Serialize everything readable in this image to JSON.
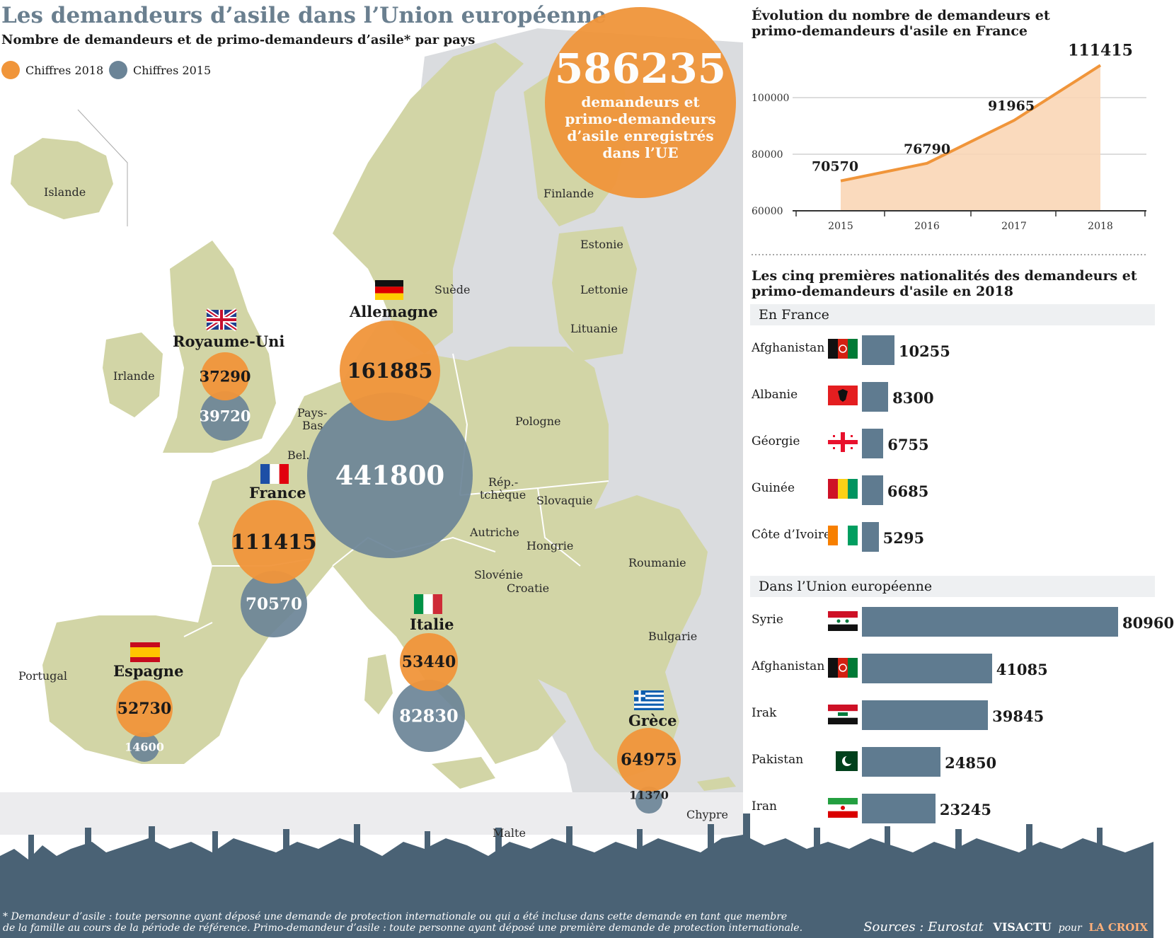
{
  "header": {
    "title": "Les demandeurs d’asile dans l’Union européenne",
    "subtitle": "Nombre de demandeurs et de primo-demandeurs d’asile* par pays",
    "legend_2018": "Chiffres 2018",
    "legend_2015": "Chiffres 2015"
  },
  "colors": {
    "orange": "#f0953a",
    "blue": "#6b8497",
    "land": "#d2d5a6",
    "other_land": "#dadcdf",
    "sea": "#ffffff",
    "bar": "#5f7b90"
  },
  "total": {
    "value": "586235",
    "text_lines": [
      "demandeurs et",
      "primo-demandeurs",
      "d’asile enregistrés",
      "dans l’UE"
    ]
  },
  "map_labels": {
    "islande": "Islande",
    "finlande": "Finlande",
    "suede": "Suède",
    "estonie": "Estonie",
    "lettonie": "Lettonie",
    "lituanie": "Lituanie",
    "irlande": "Irlande",
    "pays_bas_1": "Pays-",
    "pays_bas_2": "Bas",
    "belgique": "Bel.",
    "pologne": "Pologne",
    "rep_tcheque_1": "Rép.-",
    "rep_tcheque_2": "tchèque",
    "slovaquie": "Slovaquie",
    "autriche": "Autriche",
    "hongrie": "Hongrie",
    "roumanie": "Roumanie",
    "slovenie": "Slovénie",
    "croatie": "Croatie",
    "bulgarie": "Bulgarie",
    "portugal": "Portugal",
    "malte": "Malte",
    "chypre": "Chypre"
  },
  "countries": [
    {
      "name": "Royaume-Uni",
      "v2018": "37290",
      "v2015": "39720"
    },
    {
      "name": "Allemagne",
      "v2018": "161885",
      "v2015": "441800"
    },
    {
      "name": "France",
      "v2018": "111415",
      "v2015": "70570"
    },
    {
      "name": "Espagne",
      "v2018": "52730",
      "v2015": "14600"
    },
    {
      "name": "Italie",
      "v2018": "53440",
      "v2015": "82830"
    },
    {
      "name": "Grèce",
      "v2018": "64975",
      "v2015": "11370"
    }
  ],
  "france_evolution": {
    "title_lines": [
      "Évolution du nombre de demandeurs et",
      "primo-demandeurs d'asile en France"
    ],
    "value_labels": [
      "70570",
      "76790",
      "91965",
      "111415"
    ]
  },
  "top_nationalities": {
    "title_lines": [
      "Les cinq premières nationalités des demandeurs et",
      "primo-demandeurs d'asile en 2018"
    ],
    "france_label": "En France",
    "eu_label": "Dans l’Union européenne",
    "france_value_labels": [
      "10255",
      "8300",
      "6755",
      "6685",
      "5295"
    ],
    "eu_value_labels": [
      "80960",
      "41085",
      "39845",
      "24850",
      "23245"
    ]
  },
  "chart_data": [
    {
      "type": "line",
      "x": [
        2015,
        2016,
        2017,
        2018
      ],
      "y": [
        70570,
        76790,
        91965,
        111415
      ],
      "ylim": [
        60000,
        115000
      ],
      "yticks": [
        60000,
        80000,
        100000
      ],
      "ytick_labels": [
        "60000",
        "80000",
        "100000"
      ],
      "xtick_labels": [
        "2015",
        "2016",
        "2017",
        "2018"
      ]
    },
    {
      "type": "bar",
      "categories": [
        "Afghanistan",
        "Albanie",
        "Géorgie",
        "Guinée",
        "Côte d’Ivoire"
      ],
      "values": [
        10255,
        8300,
        6755,
        6685,
        5295
      ]
    },
    {
      "type": "bar",
      "categories": [
        "Syrie",
        "Afghanistan",
        "Irak",
        "Pakistan",
        "Iran"
      ],
      "values": [
        80960,
        41085,
        39845,
        24850,
        23245
      ]
    }
  ],
  "footer": {
    "footnote_1": "* Demandeur d’asile : toute personne ayant déposé une demande de protection internationale ou qui a été incluse dans cette demande en tant que membre",
    "footnote_2": "de la famille au cours de la période de référence. Primo-demandeur d’asile : toute personne ayant déposé une première demande de protection internationale.",
    "sources": "Sources : Eurostat",
    "credit_1": "VISACTU",
    "credit_2": "pour",
    "credit_3": "LA CROIX"
  }
}
